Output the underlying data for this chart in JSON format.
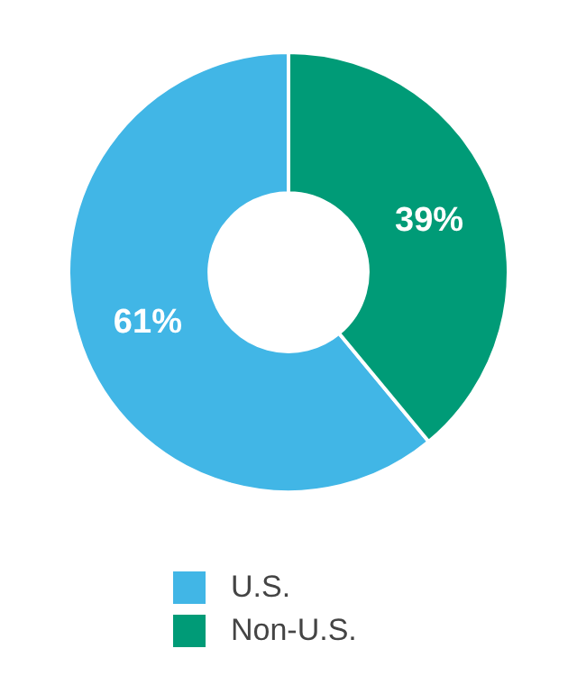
{
  "chart_data": {
    "type": "donut",
    "categories": [
      "U.S.",
      "Non-U.S."
    ],
    "values": [
      61,
      39
    ],
    "colors": [
      "#41b6e6",
      "#009b77"
    ],
    "value_labels": [
      "61%",
      "39%"
    ],
    "legend": "bottom"
  }
}
